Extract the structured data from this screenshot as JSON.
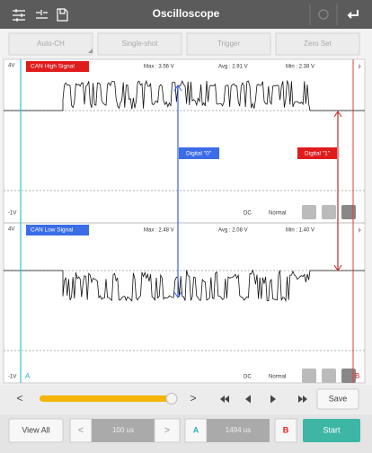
{
  "header": {
    "title": "Oscilloscope"
  },
  "toolbar": [
    "Auto-CH",
    "Single-shot",
    "Trigger",
    "Zero Set"
  ],
  "channels": [
    {
      "top": "4V",
      "name": "CAN High Signal",
      "max": "Max : 3.56 V",
      "avg": "Avg : 2.91 V",
      "min": "Min : 2.38 V",
      "bottom": "-1V",
      "coupling": "DC",
      "mode": "Normal"
    },
    {
      "top": "4V",
      "name": "CAN Low Signal",
      "max": "Max : 2.48 V",
      "avg": "Avg : 2.08 V",
      "min": "Min : 1.40 V",
      "bottom": "-1V",
      "cursor_a": "A",
      "coupling": "DC",
      "mode": "Normal",
      "cursor_b": "B"
    }
  ],
  "annotations": [
    "Digital \"0\"",
    "Digital \"1\""
  ],
  "controls": {
    "prev": "<",
    "next": ">",
    "save": "Save",
    "view_all": "View All",
    "time_prev": "<",
    "timebase": "100 us",
    "time_next": ">",
    "cursor_a": "A",
    "cursor_time": "1494 us",
    "cursor_b": "B",
    "start": "Start"
  }
}
